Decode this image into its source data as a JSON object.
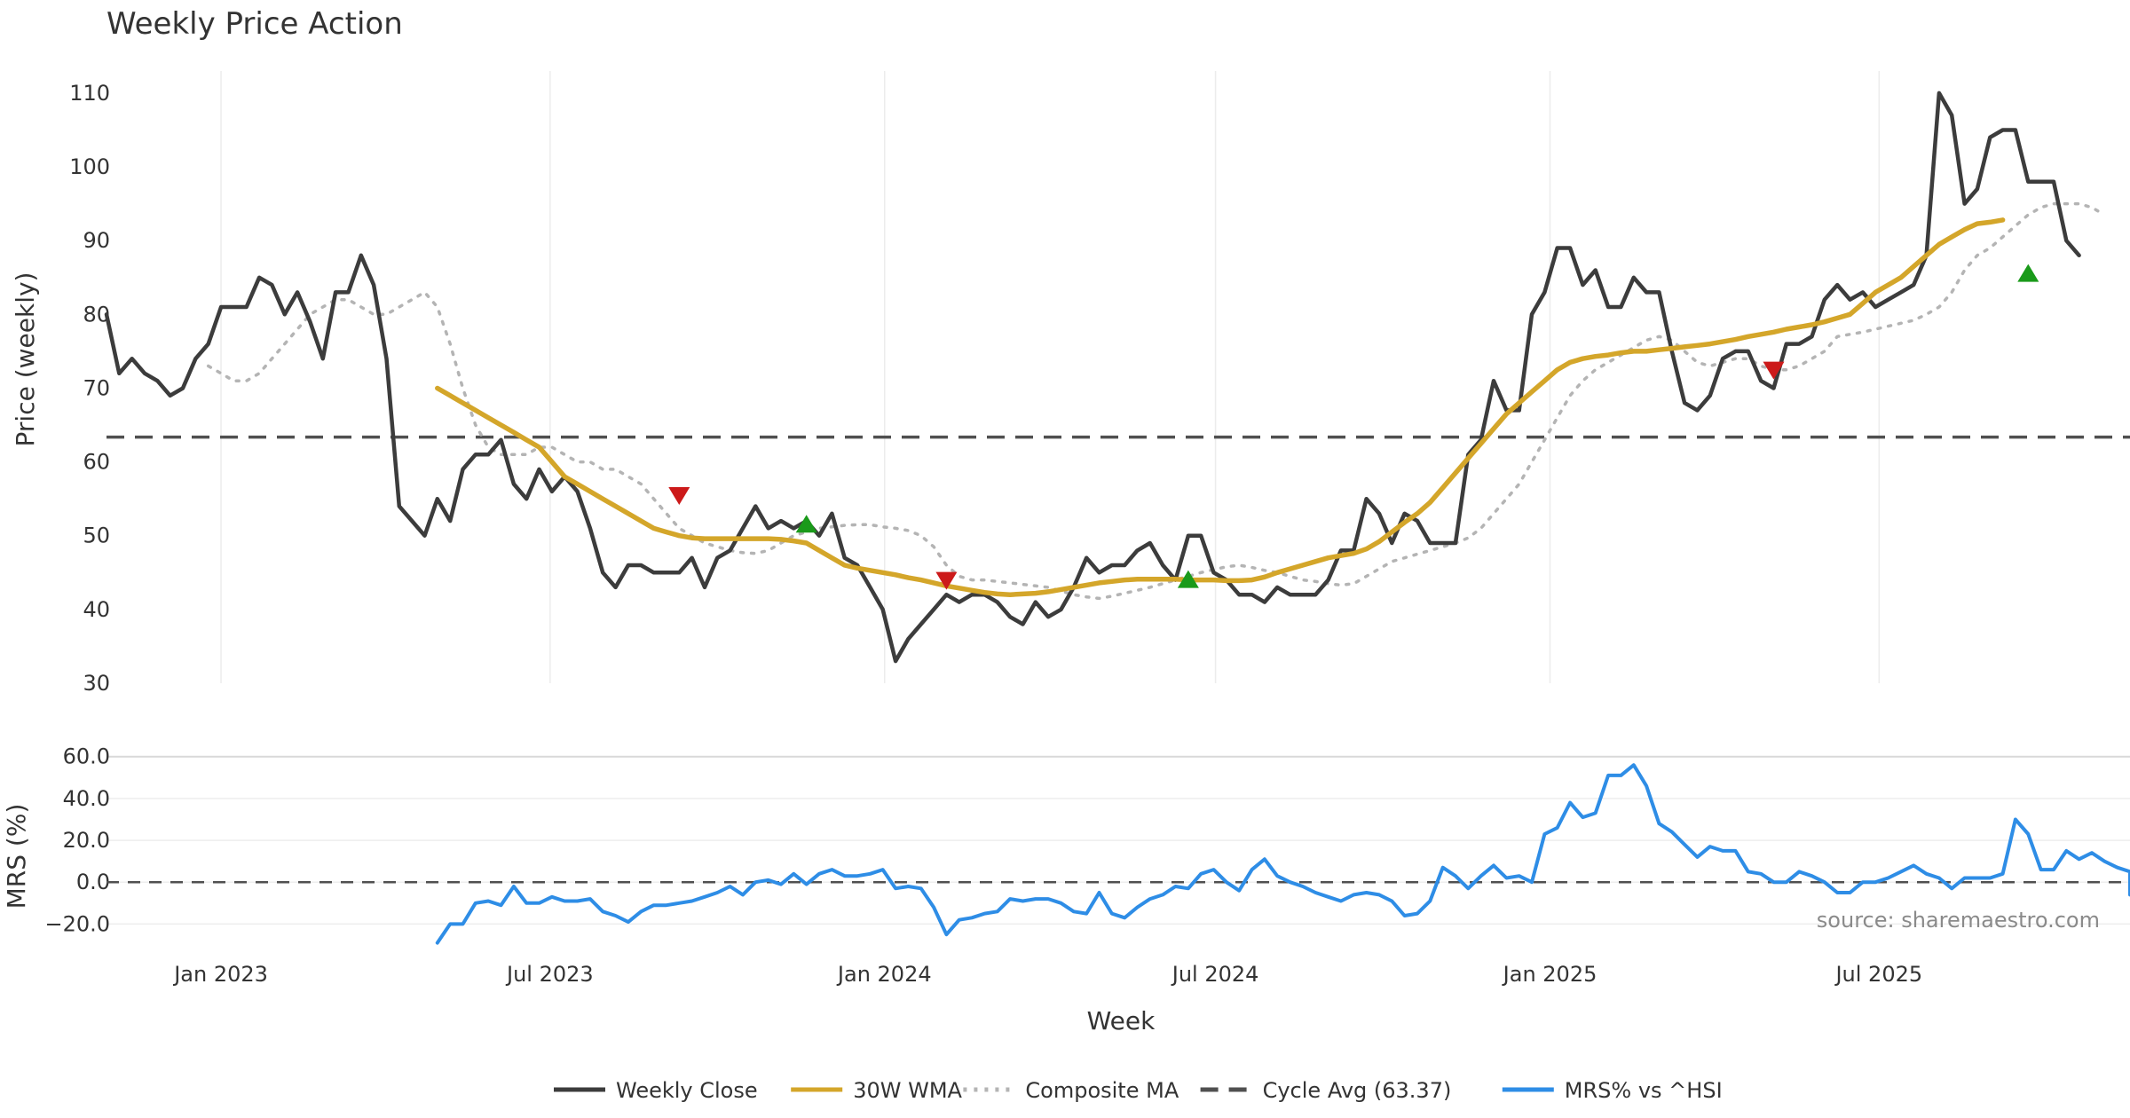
{
  "chart_data": {
    "type": "line",
    "title": "Weekly Price Action",
    "xlabel": "Week",
    "source": "source: sharemaestro.com",
    "date_ticks": [
      {
        "date": "2023-01-01",
        "label": "Jan 2023"
      },
      {
        "date": "2023-07-01",
        "label": "Jul 2023"
      },
      {
        "date": "2024-01-01",
        "label": "Jan 2024"
      },
      {
        "date": "2024-07-01",
        "label": "Jul 2024"
      },
      {
        "date": "2025-01-01",
        "label": "Jan 2025"
      },
      {
        "date": "2025-07-01",
        "label": "Jul 2025"
      }
    ],
    "x_start": "2022-10-30",
    "x_end": "2025-11-16",
    "price_panel": {
      "ylabel": "Price (weekly)",
      "ylim": [
        30,
        113
      ],
      "yticks": [
        30,
        40,
        50,
        60,
        70,
        80,
        90,
        100,
        110
      ],
      "cycle_avg": 63.37,
      "series": [
        {
          "name": "Weekly Close",
          "color": "#3c3c3c",
          "style": "solid",
          "x_start": "2022-10-30",
          "values": [
            80,
            72,
            74,
            72,
            71,
            69,
            70,
            74,
            76,
            81,
            81,
            81,
            85,
            84,
            80,
            83,
            79,
            74,
            83,
            83,
            88,
            84,
            74,
            54,
            52,
            50,
            55,
            52,
            59,
            61,
            61,
            63,
            57,
            55,
            59,
            56,
            58,
            56,
            51,
            45,
            43,
            46,
            46,
            45,
            45,
            45,
            47,
            43,
            47,
            48,
            51,
            54,
            51,
            52,
            51,
            52,
            50,
            53,
            47,
            46,
            43,
            40,
            33,
            36,
            38,
            40,
            42,
            41,
            42,
            42,
            41,
            39,
            38,
            41,
            39,
            40,
            43,
            47,
            45,
            46,
            46,
            48,
            49,
            46,
            44,
            50,
            50,
            45,
            44,
            42,
            42,
            41,
            43,
            42,
            42,
            42,
            44,
            48,
            48,
            55,
            53,
            49,
            53,
            52,
            49,
            49,
            49,
            61,
            63,
            71,
            67,
            67,
            80,
            83,
            89,
            89,
            84,
            86,
            81,
            81,
            85,
            83,
            83,
            75,
            68,
            67,
            69,
            74,
            75,
            75,
            71,
            70,
            76,
            76,
            77,
            82,
            84,
            82,
            83,
            81,
            82,
            83,
            84,
            88,
            110,
            107,
            95,
            97,
            104,
            105,
            105,
            98,
            98,
            98,
            90,
            88
          ]
        },
        {
          "name": "30W WMA",
          "color": "#d4a62a",
          "style": "solid",
          "x_start": "2023-04-30",
          "values": [
            70,
            69,
            68,
            67,
            66,
            65,
            64,
            63,
            62,
            60,
            58,
            57,
            56,
            55,
            54,
            53,
            52,
            51,
            50.5,
            50,
            49.7,
            49.6,
            49.6,
            49.6,
            49.6,
            49.6,
            49.6,
            49.5,
            49.3,
            49,
            48,
            47,
            46,
            45.6,
            45.3,
            45,
            44.7,
            44.3,
            44,
            43.6,
            43.2,
            42.9,
            42.6,
            42.3,
            42.1,
            42,
            42.1,
            42.2,
            42.4,
            42.7,
            43,
            43.3,
            43.6,
            43.8,
            44,
            44.1,
            44.1,
            44.1,
            44.1,
            44,
            44,
            44,
            43.9,
            43.9,
            44,
            44.4,
            45,
            45.5,
            46,
            46.5,
            47,
            47.3,
            47.6,
            48.2,
            49.2,
            50.5,
            51.8,
            53,
            54.5,
            56.5,
            58.5,
            60.5,
            62.5,
            64.5,
            66.5,
            68,
            69.5,
            71,
            72.5,
            73.5,
            74,
            74.3,
            74.5,
            74.8,
            75,
            75,
            75.2,
            75.4,
            75.6,
            75.8,
            76,
            76.3,
            76.6,
            77,
            77.3,
            77.6,
            78,
            78.3,
            78.6,
            79,
            79.5,
            80,
            81.5,
            83,
            84,
            85,
            86.5,
            88,
            89.5,
            90.5,
            91.5,
            92.3,
            92.5,
            92.8
          ]
        },
        {
          "name": "Composite MA",
          "color": "#b4b4b4",
          "style": "dotted",
          "x_start": "2022-12-25",
          "values": [
            73,
            72,
            71,
            71,
            72,
            74,
            76,
            78,
            80,
            81,
            82,
            82,
            81,
            80,
            80,
            81,
            82,
            83,
            81,
            76,
            70,
            65,
            62,
            61,
            61,
            61,
            62,
            62,
            61,
            60,
            60,
            59,
            59,
            58,
            57,
            55,
            53,
            51,
            50,
            49,
            48.5,
            48,
            47.7,
            47.6,
            48,
            49,
            50,
            50.5,
            51,
            51.2,
            51.4,
            51.5,
            51.5,
            51.2,
            51,
            50.7,
            50,
            48.5,
            46,
            44.5,
            44,
            44,
            43.8,
            43.6,
            43.4,
            43.2,
            43,
            42.5,
            42,
            41.7,
            41.5,
            41.8,
            42.2,
            42.6,
            43,
            43.5,
            44,
            44.5,
            45,
            45.4,
            45.8,
            46,
            45.7,
            45.3,
            45,
            44.5,
            44,
            43.8,
            43.5,
            43.3,
            43.5,
            44.5,
            45.5,
            46.5,
            47,
            47.5,
            48,
            48.5,
            49,
            49.7,
            51,
            53,
            55,
            57,
            60,
            63,
            66,
            69,
            71,
            72.5,
            73.5,
            74.5,
            75.5,
            76.5,
            77,
            76.5,
            75,
            73.5,
            73,
            73.5,
            74,
            74,
            73,
            72.5,
            72.5,
            73,
            74,
            75,
            77,
            77.3,
            77.6,
            78,
            78.4,
            78.8,
            79.2,
            80,
            81,
            83,
            86,
            88,
            89,
            90.5,
            92,
            93.5,
            94.5,
            95,
            95,
            95,
            94.5,
            93.5
          ]
        }
      ],
      "signals": [
        {
          "type": "sell",
          "date": "2023-09-10",
          "value": 55.5
        },
        {
          "type": "buy",
          "date": "2023-11-19",
          "value": 51.5
        },
        {
          "type": "sell",
          "date": "2024-02-04",
          "value": 44
        },
        {
          "type": "buy",
          "date": "2024-06-16",
          "value": 44
        },
        {
          "type": "sell",
          "date": "2025-05-04",
          "value": 72.5
        },
        {
          "type": "buy",
          "date": "2025-09-21",
          "value": 85.5
        }
      ]
    },
    "mrs_panel": {
      "ylabel": "MRS (%)",
      "ylim": [
        -30,
        62
      ],
      "yticks": [
        {
          "v": 60,
          "label": "60.0"
        },
        {
          "v": 40,
          "label": "40.0"
        },
        {
          "v": 20,
          "label": "20.0"
        },
        {
          "v": 0,
          "label": "0.0"
        },
        {
          "v": -20,
          "label": "−20.0"
        }
      ],
      "series": {
        "name": "MRS% vs ^HSI",
        "color": "#2e8de6",
        "x_start": "2023-04-30",
        "values": [
          -29,
          -20,
          -20,
          -10,
          -9,
          -11,
          -2,
          -10,
          -10,
          -7,
          -9,
          -9,
          -8,
          -14,
          -16,
          -19,
          -14,
          -11,
          -11,
          -10,
          -9,
          -7,
          -5,
          -2,
          -6,
          0,
          1,
          -1,
          4,
          -1,
          4,
          6,
          3,
          3,
          4,
          6,
          -3,
          -2,
          -3,
          -12,
          -25,
          -18,
          -17,
          -15,
          -14,
          -8,
          -9,
          -8,
          -8,
          -10,
          -14,
          -15,
          -5,
          -15,
          -17,
          -12,
          -8,
          -6,
          -2,
          -3,
          4,
          6,
          0,
          -4,
          6,
          11,
          3,
          0,
          -2,
          -5,
          -7,
          -9,
          -6,
          -5,
          -6,
          -9,
          -16,
          -15,
          -9,
          7,
          3,
          -3,
          3,
          8,
          2,
          3,
          0,
          23,
          26,
          38,
          31,
          33,
          51,
          51,
          56,
          46,
          28,
          24,
          18,
          12,
          17,
          15,
          15,
          5,
          4,
          0,
          0,
          5,
          3,
          0,
          -5,
          -5,
          0,
          0,
          2,
          5,
          8,
          4,
          2,
          -3,
          2,
          2,
          2,
          4,
          30,
          23,
          6,
          6,
          15,
          11,
          14,
          10,
          7,
          5,
          -2,
          -6
        ]
      }
    },
    "legend": {
      "position": "bottom",
      "entries": [
        {
          "label": "Weekly Close",
          "color": "#3c3c3c",
          "style": "solid"
        },
        {
          "label": "30W WMA",
          "color": "#d4a62a",
          "style": "solid"
        },
        {
          "label": "Composite MA",
          "color": "#b4b4b4",
          "style": "dotted"
        },
        {
          "label": "Cycle Avg (63.37)",
          "color": "#505050",
          "style": "dashed"
        },
        {
          "label": "MRS% vs ^HSI",
          "color": "#2e8de6",
          "style": "solid"
        }
      ]
    }
  }
}
